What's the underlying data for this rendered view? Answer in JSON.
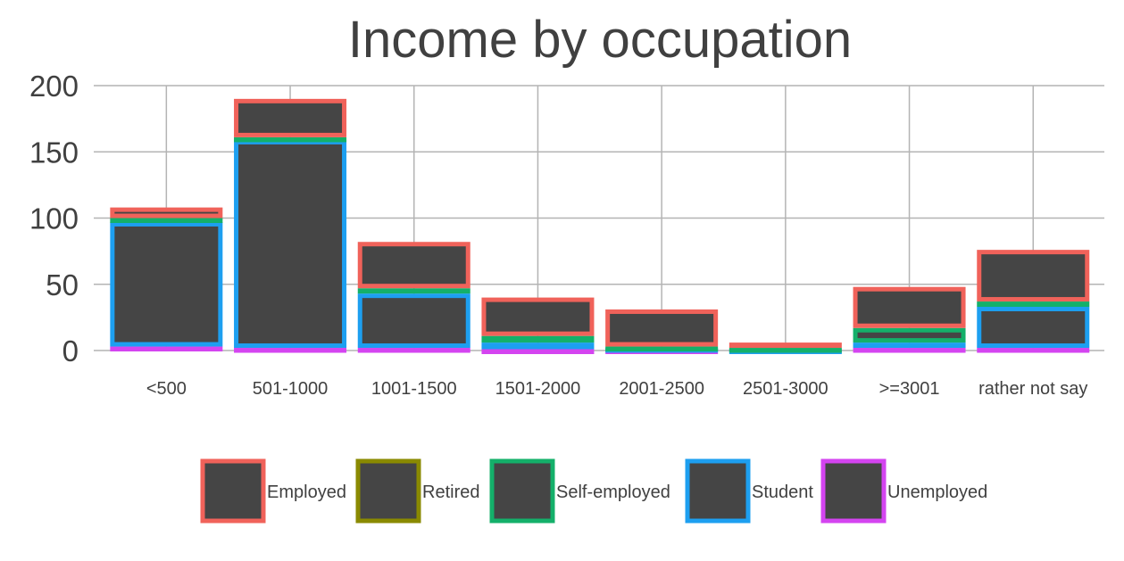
{
  "chart_data": {
    "type": "bar",
    "stacked": true,
    "title": "Income by occupation",
    "xlabel": "",
    "ylabel": "",
    "ylim": [
      0,
      200
    ],
    "yticks": [
      0,
      50,
      100,
      150,
      200
    ],
    "grid": true,
    "legend_position": "bottom",
    "bar_fill": "#454545",
    "categories": [
      "<500",
      "501-1000",
      "1001-1500",
      "1501-2000",
      "2001-2500",
      "2501-3000",
      ">=3001",
      "rather not say"
    ],
    "series": [
      {
        "name": "Unemployed",
        "color": "#d444f0",
        "values": [
          3,
          2,
          2,
          1,
          1,
          0,
          2,
          2
        ]
      },
      {
        "name": "Student",
        "color": "#1d9ff0",
        "values": [
          94,
          157,
          41,
          5,
          1,
          1,
          4,
          31
        ]
      },
      {
        "name": "Self-employed",
        "color": "#14b06a",
        "values": [
          3,
          2,
          4,
          5,
          1,
          1,
          11,
          4
        ]
      },
      {
        "name": "Retired",
        "color": "#8a8a00",
        "values": [
          0,
          0,
          0,
          0,
          0,
          0,
          0,
          0
        ]
      },
      {
        "name": "Employed",
        "color": "#f0625a",
        "values": [
          8,
          29,
          35,
          29,
          28,
          4,
          31,
          39
        ]
      }
    ],
    "legend_order": [
      "Employed",
      "Retired",
      "Self-employed",
      "Student",
      "Unemployed"
    ]
  }
}
